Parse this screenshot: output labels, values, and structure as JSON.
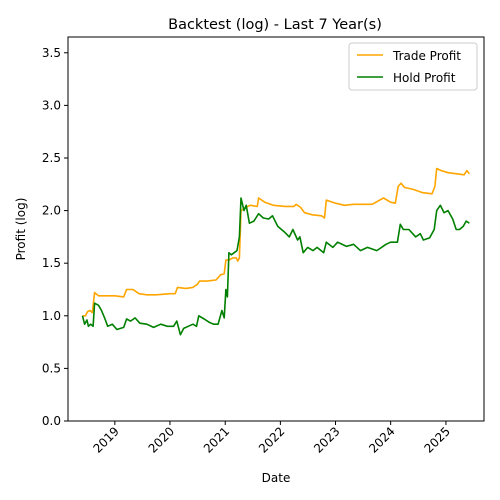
{
  "chart_data": {
    "type": "line",
    "title": "Backtest (log) - Last 7 Year(s)",
    "xlabel": "Date",
    "ylabel": "Profit (log)",
    "xlim": [
      "2018-02-25",
      "2025-09-10"
    ],
    "ylim": [
      0.0,
      3.65
    ],
    "grid": false,
    "legend_position": "top-right",
    "xticks": [
      "2019",
      "2020",
      "2021",
      "2022",
      "2023",
      "2024",
      "2025"
    ],
    "yticks": [
      "0.0",
      "0.5",
      "1.0",
      "1.5",
      "2.0",
      "2.5",
      "3.0",
      "3.5"
    ],
    "series": [
      {
        "name": "Trade Profit",
        "color": "#ffa500",
        "points": [
          [
            "2018-06-01",
            1.0
          ],
          [
            "2018-06-20",
            1.0
          ],
          [
            "2018-07-05",
            1.04
          ],
          [
            "2018-07-20",
            1.05
          ],
          [
            "2018-08-05",
            1.03
          ],
          [
            "2018-08-20",
            1.22
          ],
          [
            "2018-09-15",
            1.19
          ],
          [
            "2018-10-15",
            1.19
          ],
          [
            "2018-11-20",
            1.19
          ],
          [
            "2019-01-01",
            1.19
          ],
          [
            "2019-03-01",
            1.18
          ],
          [
            "2019-03-20",
            1.25
          ],
          [
            "2019-05-01",
            1.25
          ],
          [
            "2019-06-10",
            1.21
          ],
          [
            "2019-08-01",
            1.2
          ],
          [
            "2019-10-01",
            1.2
          ],
          [
            "2020-01-01",
            1.21
          ],
          [
            "2020-02-05",
            1.21
          ],
          [
            "2020-02-20",
            1.27
          ],
          [
            "2020-04-15",
            1.26
          ],
          [
            "2020-06-01",
            1.27
          ],
          [
            "2020-07-01",
            1.3
          ],
          [
            "2020-07-15",
            1.33
          ],
          [
            "2020-09-01",
            1.33
          ],
          [
            "2020-11-01",
            1.34
          ],
          [
            "2020-12-01",
            1.39
          ],
          [
            "2020-12-25",
            1.4
          ],
          [
            "2021-01-05",
            1.53
          ],
          [
            "2021-01-25",
            1.53
          ],
          [
            "2021-02-20",
            1.55
          ],
          [
            "2021-03-15",
            1.55
          ],
          [
            "2021-03-25",
            1.52
          ],
          [
            "2021-04-05",
            1.55
          ],
          [
            "2021-04-15",
            2.0
          ],
          [
            "2021-05-15",
            2.03
          ],
          [
            "2021-06-15",
            2.05
          ],
          [
            "2021-08-01",
            2.04
          ],
          [
            "2021-08-10",
            2.12
          ],
          [
            "2021-09-20",
            2.08
          ],
          [
            "2021-11-15",
            2.05
          ],
          [
            "2022-02-01",
            2.04
          ],
          [
            "2022-04-01",
            2.04
          ],
          [
            "2022-04-15",
            2.06
          ],
          [
            "2022-05-15",
            2.03
          ],
          [
            "2022-06-10",
            1.98
          ],
          [
            "2022-08-01",
            1.96
          ],
          [
            "2022-10-01",
            1.95
          ],
          [
            "2022-10-20",
            1.93
          ],
          [
            "2022-11-01",
            2.1
          ],
          [
            "2023-01-01",
            2.07
          ],
          [
            "2023-03-01",
            2.05
          ],
          [
            "2023-05-01",
            2.06
          ],
          [
            "2023-07-01",
            2.06
          ],
          [
            "2023-09-01",
            2.06
          ],
          [
            "2023-11-15",
            2.12
          ],
          [
            "2024-01-01",
            2.08
          ],
          [
            "2024-02-01",
            2.07
          ],
          [
            "2024-02-20",
            2.23
          ],
          [
            "2024-03-10",
            2.26
          ],
          [
            "2024-04-01",
            2.22
          ],
          [
            "2024-06-01",
            2.2
          ],
          [
            "2024-08-01",
            2.17
          ],
          [
            "2024-10-01",
            2.16
          ],
          [
            "2024-10-20",
            2.23
          ],
          [
            "2024-11-01",
            2.4
          ],
          [
            "2024-12-01",
            2.38
          ],
          [
            "2025-01-15",
            2.36
          ],
          [
            "2025-03-15",
            2.35
          ],
          [
            "2025-05-01",
            2.34
          ],
          [
            "2025-05-20",
            2.38
          ],
          [
            "2025-06-05",
            2.35
          ]
        ]
      },
      {
        "name": "Hold Profit",
        "color": "#008000",
        "points": [
          [
            "2018-06-01",
            1.0
          ],
          [
            "2018-06-15",
            0.92
          ],
          [
            "2018-07-01",
            0.96
          ],
          [
            "2018-07-10",
            0.9
          ],
          [
            "2018-07-25",
            0.92
          ],
          [
            "2018-08-10",
            0.9
          ],
          [
            "2018-08-20",
            1.12
          ],
          [
            "2018-09-15",
            1.1
          ],
          [
            "2018-10-05",
            1.05
          ],
          [
            "2018-10-25",
            0.98
          ],
          [
            "2018-11-15",
            0.9
          ],
          [
            "2018-12-15",
            0.92
          ],
          [
            "2019-01-15",
            0.87
          ],
          [
            "2019-03-01",
            0.89
          ],
          [
            "2019-03-20",
            0.97
          ],
          [
            "2019-04-15",
            0.95
          ],
          [
            "2019-05-15",
            0.98
          ],
          [
            "2019-06-15",
            0.93
          ],
          [
            "2019-08-01",
            0.92
          ],
          [
            "2019-09-15",
            0.89
          ],
          [
            "2019-11-01",
            0.92
          ],
          [
            "2019-12-15",
            0.9
          ],
          [
            "2020-01-25",
            0.9
          ],
          [
            "2020-02-15",
            0.95
          ],
          [
            "2020-03-10",
            0.82
          ],
          [
            "2020-04-01",
            0.88
          ],
          [
            "2020-05-01",
            0.9
          ],
          [
            "2020-06-01",
            0.92
          ],
          [
            "2020-06-25",
            0.9
          ],
          [
            "2020-07-10",
            1.0
          ],
          [
            "2020-08-15",
            0.97
          ],
          [
            "2020-09-15",
            0.94
          ],
          [
            "2020-10-15",
            0.92
          ],
          [
            "2020-11-15",
            0.92
          ],
          [
            "2020-12-10",
            1.05
          ],
          [
            "2020-12-25",
            0.98
          ],
          [
            "2021-01-05",
            1.25
          ],
          [
            "2021-01-15",
            1.18
          ],
          [
            "2021-01-25",
            1.6
          ],
          [
            "2021-02-10",
            1.58
          ],
          [
            "2021-03-01",
            1.6
          ],
          [
            "2021-03-20",
            1.62
          ],
          [
            "2021-04-05",
            1.75
          ],
          [
            "2021-04-15",
            2.12
          ],
          [
            "2021-05-05",
            2.0
          ],
          [
            "2021-05-20",
            2.05
          ],
          [
            "2021-06-10",
            1.88
          ],
          [
            "2021-07-10",
            1.9
          ],
          [
            "2021-08-10",
            1.97
          ],
          [
            "2021-09-10",
            1.93
          ],
          [
            "2021-10-15",
            1.92
          ],
          [
            "2021-11-10",
            1.95
          ],
          [
            "2021-12-15",
            1.85
          ],
          [
            "2022-01-25",
            1.8
          ],
          [
            "2022-03-01",
            1.75
          ],
          [
            "2022-03-25",
            1.82
          ],
          [
            "2022-04-25",
            1.72
          ],
          [
            "2022-05-10",
            1.75
          ],
          [
            "2022-06-01",
            1.6
          ],
          [
            "2022-07-01",
            1.65
          ],
          [
            "2022-08-05",
            1.62
          ],
          [
            "2022-09-01",
            1.65
          ],
          [
            "2022-10-15",
            1.6
          ],
          [
            "2022-11-01",
            1.7
          ],
          [
            "2022-12-15",
            1.65
          ],
          [
            "2023-01-15",
            1.7
          ],
          [
            "2023-03-15",
            1.66
          ],
          [
            "2023-05-01",
            1.68
          ],
          [
            "2023-06-15",
            1.62
          ],
          [
            "2023-08-01",
            1.65
          ],
          [
            "2023-10-01",
            1.62
          ],
          [
            "2023-12-01",
            1.68
          ],
          [
            "2024-01-01",
            1.7
          ],
          [
            "2024-02-15",
            1.7
          ],
          [
            "2024-03-05",
            1.87
          ],
          [
            "2024-03-25",
            1.82
          ],
          [
            "2024-05-01",
            1.82
          ],
          [
            "2024-06-15",
            1.75
          ],
          [
            "2024-07-15",
            1.78
          ],
          [
            "2024-08-05",
            1.72
          ],
          [
            "2024-09-15",
            1.74
          ],
          [
            "2024-10-15",
            1.82
          ],
          [
            "2024-11-01",
            2.0
          ],
          [
            "2024-11-25",
            2.05
          ],
          [
            "2024-12-20",
            1.98
          ],
          [
            "2025-01-15",
            2.0
          ],
          [
            "2025-02-15",
            1.92
          ],
          [
            "2025-03-10",
            1.82
          ],
          [
            "2025-04-01",
            1.82
          ],
          [
            "2025-04-25",
            1.85
          ],
          [
            "2025-05-15",
            1.9
          ],
          [
            "2025-06-05",
            1.88
          ]
        ]
      }
    ]
  }
}
